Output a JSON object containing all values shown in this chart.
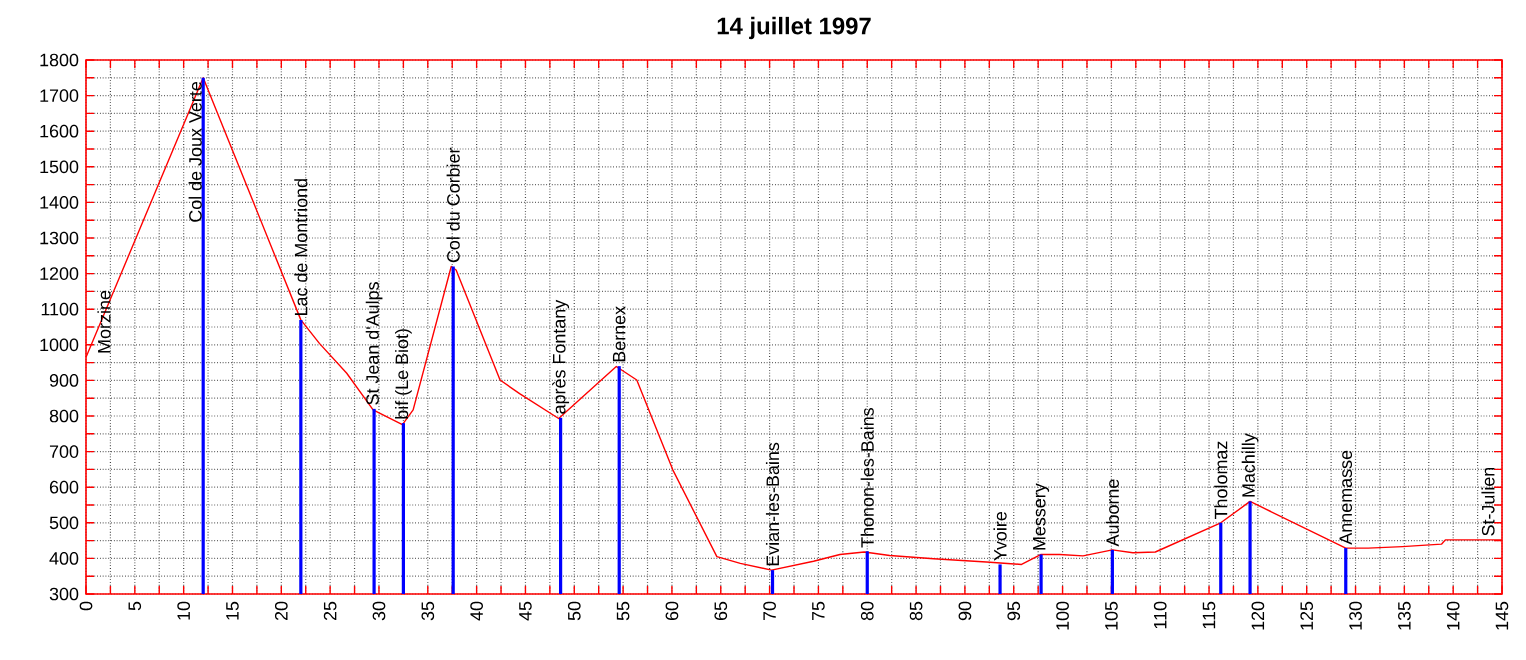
{
  "chart_data": {
    "type": "line",
    "title": "14 juillet 1997",
    "xlim": [
      0,
      145
    ],
    "xticks": [
      0,
      {
        "value": 2.5,
        "label": null
      },
      5,
      {
        "value": 7.5,
        "label": null
      },
      10,
      {
        "value": 12.5,
        "label": null
      },
      15,
      {
        "value": 17.5,
        "label": null
      },
      20,
      {
        "value": 22.5,
        "label": null
      },
      25,
      {
        "value": 27.5,
        "label": null
      },
      30,
      {
        "value": 32.5,
        "label": null
      },
      35,
      {
        "value": 37.5,
        "label": null
      },
      40,
      {
        "value": 42.5,
        "label": null
      },
      45,
      {
        "value": 47.5,
        "label": null
      },
      50,
      {
        "value": 52.5,
        "label": null
      },
      55,
      {
        "value": 57.5,
        "label": null
      },
      60,
      {
        "value": 62.5,
        "label": null
      },
      65,
      {
        "value": 67.5,
        "label": null
      },
      70,
      {
        "value": 72.5,
        "label": null
      },
      75,
      {
        "value": 77.5,
        "label": null
      },
      80,
      {
        "value": 82.5,
        "label": null
      },
      85,
      {
        "value": 87.5,
        "label": null
      },
      90,
      {
        "value": 92.5,
        "label": null
      },
      95,
      {
        "value": 97.5,
        "label": null
      },
      100,
      {
        "value": 102.5,
        "label": null
      },
      105,
      {
        "value": 107.5,
        "label": null
      },
      110,
      {
        "value": 112.5,
        "label": null
      },
      115,
      {
        "value": 117.5,
        "label": null
      },
      120,
      {
        "value": 122.5,
        "label": null
      },
      125,
      {
        "value": 127.5,
        "label": null
      },
      130,
      {
        "value": 132.5,
        "label": null
      },
      135,
      {
        "value": 137.5,
        "label": null
      },
      140,
      {
        "value": 142.5,
        "label": null
      },
      145
    ],
    "ylim": [
      300,
      1800
    ],
    "yticks": [
      300,
      {
        "value": 350,
        "label": null
      },
      400,
      {
        "value": 450,
        "label": null
      },
      500,
      {
        "value": 550,
        "label": null
      },
      600,
      {
        "value": 650,
        "label": null
      },
      700,
      {
        "value": 750,
        "label": null
      },
      800,
      {
        "value": 850,
        "label": null
      },
      900,
      {
        "value": 950,
        "label": null
      },
      1000,
      {
        "value": 1050,
        "label": null
      },
      1100,
      {
        "value": 1150,
        "label": null
      },
      1200,
      {
        "value": 1250,
        "label": null
      },
      1300,
      {
        "value": 1350,
        "label": null
      },
      1400,
      {
        "value": 1450,
        "label": null
      },
      1500,
      {
        "value": 1550,
        "label": null
      },
      1600,
      {
        "value": 1650,
        "label": null
      },
      1700,
      {
        "value": 1750,
        "label": null
      },
      1800
    ],
    "grid": true,
    "series": [
      {
        "color": "#ff0000",
        "x": [
          0,
          12,
          22,
          23.9,
          26.7,
          29.4,
          32.4,
          33.5,
          37.4,
          37.9,
          42.4,
          44.4,
          48.4,
          54.3,
          56.4,
          60.1,
          64.6,
          67,
          70.2,
          74.5,
          77.2,
          79.7,
          82.3,
          86.8,
          92.2,
          95.8,
          97.8,
          99.7,
          102.1,
          105.1,
          107.2,
          109.5,
          116.2,
          119.2,
          129,
          131.3,
          134.8,
          138.8,
          139.2,
          145
        ],
        "values": [
          965,
          1750,
          1070,
          1004,
          920,
          817,
          776,
          817,
          1220,
          1210,
          901,
          863,
          793,
          939,
          901,
          648,
          405,
          386,
          367,
          392,
          411,
          418,
          408,
          399,
          390,
          383,
          411,
          411,
          407,
          424,
          416,
          418,
          500,
          560,
          429,
          429,
          433,
          440,
          452,
          452
        ]
      },
      {
        "type": "bar",
        "color": "#0000ff",
        "x": [
          12,
          22,
          29.5,
          32.5,
          37.6,
          48.6,
          54.6,
          70.3,
          80,
          93.6,
          97.8,
          105.1,
          116.2,
          119.2,
          129
        ],
        "values": [
          1750,
          1070,
          820,
          780,
          1220,
          795,
          940,
          367,
          420,
          383,
          411,
          424,
          500,
          560,
          429
        ]
      }
    ],
    "annotations": [
      {
        "text": "Morzine",
        "x": 0,
        "y": 965
      },
      {
        "text": "Col de Joux Verte",
        "x": 12,
        "y": 1750
      },
      {
        "text": "Lac de Montriond",
        "x": 22,
        "y": 1070
      },
      {
        "text": "St Jean d'Aulps",
        "x": 29.5,
        "y": 820
      },
      {
        "text": "bif (Le Biot)",
        "x": 32.5,
        "y": 780
      },
      {
        "text": "Col du Corbier",
        "x": 37.6,
        "y": 1220
      },
      {
        "text": "après Fontany",
        "x": 48.6,
        "y": 795
      },
      {
        "text": "Bernex",
        "x": 54.6,
        "y": 940
      },
      {
        "text": "Evian-les-Bains",
        "x": 70.3,
        "y": 367
      },
      {
        "text": "Thonon-les-Bains",
        "x": 80,
        "y": 420
      },
      {
        "text": "Yvoire",
        "x": 93.6,
        "y": 383
      },
      {
        "text": "Messery",
        "x": 97.8,
        "y": 411
      },
      {
        "text": "Auborne",
        "x": 105.1,
        "y": 424
      },
      {
        "text": "Tholomaz",
        "x": 116.2,
        "y": 500
      },
      {
        "text": "Machilly",
        "x": 119.2,
        "y": 560
      },
      {
        "text": "Annemasse",
        "x": 129,
        "y": 429
      },
      {
        "text": "St-Julien",
        "x": 145,
        "y": 452
      }
    ]
  }
}
